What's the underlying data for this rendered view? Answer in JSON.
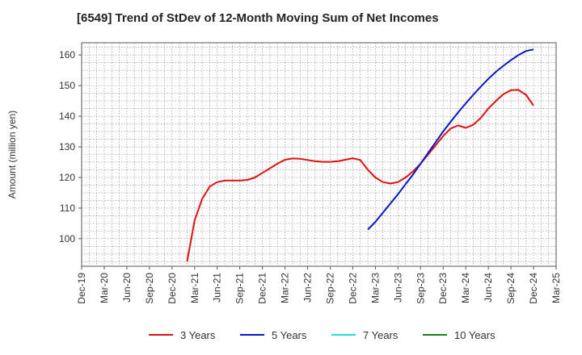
{
  "chart_data": {
    "type": "line",
    "title": "[6549]  Trend of StDev of 12-Month Moving Sum of Net Incomes",
    "ylabel": "Amount (million yen)",
    "xlabel": "",
    "grid": true,
    "legend_position": "bottom",
    "x_tick_labels": [
      "Dec-19",
      "Mar-20",
      "Jun-20",
      "Sep-20",
      "Dec-20",
      "Mar-21",
      "Jun-21",
      "Sep-21",
      "Dec-21",
      "Mar-22",
      "Jun-22",
      "Sep-22",
      "Dec-22",
      "Mar-23",
      "Jun-23",
      "Sep-23",
      "Dec-23",
      "Mar-24",
      "Jun-24",
      "Sep-24",
      "Dec-24",
      "Mar-25"
    ],
    "y_ticks": [
      100,
      110,
      120,
      130,
      140,
      150,
      160
    ],
    "ylim": [
      91,
      164
    ],
    "series": [
      {
        "name": "3 Years",
        "color": "#dd1111",
        "x": [
          "Feb-21",
          "Mar-21",
          "Apr-21",
          "May-21",
          "Jun-21",
          "Jul-21",
          "Aug-21",
          "Sep-21",
          "Oct-21",
          "Nov-21",
          "Dec-21",
          "Jan-22",
          "Feb-22",
          "Mar-22",
          "Apr-22",
          "May-22",
          "Jun-22",
          "Jul-22",
          "Aug-22",
          "Sep-22",
          "Oct-22",
          "Nov-22",
          "Dec-22",
          "Jan-23",
          "Feb-23",
          "Mar-23",
          "Apr-23",
          "May-23",
          "Jun-23",
          "Jul-23",
          "Aug-23",
          "Sep-23",
          "Oct-23",
          "Nov-23",
          "Dec-23",
          "Jan-24",
          "Feb-24",
          "Mar-24",
          "Apr-24",
          "May-24",
          "Jun-24",
          "Jul-24",
          "Aug-24",
          "Sep-24",
          "Oct-24",
          "Nov-24",
          "Dec-24"
        ],
        "values": [
          92.5,
          106,
          113,
          117,
          118.5,
          119,
          119,
          119,
          119.2,
          120,
          121.5,
          123,
          124.5,
          125.8,
          126.2,
          126.1,
          125.7,
          125.3,
          125.1,
          125.1,
          125.3,
          125.8,
          126.3,
          125.7,
          122.5,
          120,
          118.5,
          118,
          118.5,
          120,
          122,
          124.5,
          127.5,
          130.5,
          133.5,
          136,
          137,
          136.2,
          137.2,
          139.5,
          142.5,
          145,
          147.2,
          148.5,
          148.6,
          147,
          143.5
        ]
      },
      {
        "name": "5 Years",
        "color": "#0a14c8",
        "x": [
          "Feb-23",
          "Mar-23",
          "Apr-23",
          "May-23",
          "Jun-23",
          "Jul-23",
          "Aug-23",
          "Sep-23",
          "Oct-23",
          "Nov-23",
          "Dec-23",
          "Jan-24",
          "Feb-24",
          "Mar-24",
          "Apr-24",
          "May-24",
          "Jun-24",
          "Jul-24",
          "Aug-24",
          "Sep-24",
          "Oct-24",
          "Nov-24",
          "Dec-24"
        ],
        "values": [
          103,
          105.5,
          108.5,
          111.5,
          114.5,
          117.8,
          121,
          124.5,
          128,
          131.5,
          135,
          138.2,
          141.3,
          144.2,
          147,
          149.7,
          152.2,
          154.5,
          156.5,
          158.3,
          160,
          161.3,
          161.8
        ]
      },
      {
        "name": "7 Years",
        "color": "#22dddd",
        "x": [],
        "values": []
      },
      {
        "name": "10 Years",
        "color": "#1a7f1a",
        "x": [],
        "values": []
      }
    ]
  }
}
